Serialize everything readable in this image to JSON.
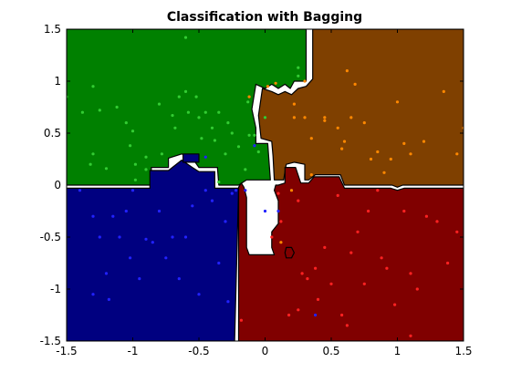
{
  "chart_data": {
    "type": "scatter",
    "title": "Classification with Bagging",
    "xlabel": "",
    "ylabel": "",
    "xlim": [
      -1.5,
      1.5
    ],
    "ylim": [
      -1.5,
      1.5
    ],
    "xticks": [
      "-1.5",
      "-1",
      "-0.5",
      "0",
      "0.5",
      "1",
      "1.5"
    ],
    "yticks": [
      "1.5",
      "1",
      "0.5",
      "0",
      "-0.5",
      "-1",
      "-1.5"
    ],
    "xtick_values": [
      -1.5,
      -1,
      -0.5,
      0,
      0.5,
      1,
      1.5
    ],
    "ytick_values": [
      1.5,
      1,
      0.5,
      0,
      -0.5,
      -1,
      -1.5
    ],
    "grid": false,
    "decision_regions": [
      {
        "class": "green",
        "color": "#008000",
        "polygon": [
          [
            -1.5,
            1.5
          ],
          [
            0.31,
            1.5
          ],
          [
            0.31,
            1.0
          ],
          [
            0.22,
            1.0
          ],
          [
            0.19,
            0.93
          ],
          [
            0.15,
            0.97
          ],
          [
            0.1,
            0.93
          ],
          [
            0.05,
            0.97
          ],
          [
            0.0,
            0.93
          ],
          [
            -0.07,
            0.97
          ],
          [
            -0.1,
            0.73
          ],
          [
            -0.07,
            0.55
          ],
          [
            -0.07,
            0.4
          ],
          [
            0.02,
            0.4
          ],
          [
            0.04,
            0.05
          ],
          [
            -0.14,
            0.05
          ],
          [
            -0.2,
            0.0
          ],
          [
            -0.35,
            0.0
          ],
          [
            -0.36,
            0.17
          ],
          [
            -0.5,
            0.17
          ],
          [
            -0.55,
            0.26
          ],
          [
            -0.63,
            0.3
          ],
          [
            -0.73,
            0.26
          ],
          [
            -0.73,
            0.17
          ],
          [
            -0.86,
            0.17
          ],
          [
            -0.86,
            0.0
          ],
          [
            -1.5,
            0.0
          ]
        ]
      },
      {
        "class": "brown",
        "color": "#7f4000",
        "polygon": [
          [
            0.36,
            1.5
          ],
          [
            1.5,
            1.5
          ],
          [
            1.5,
            0.0
          ],
          [
            1.04,
            0.0
          ],
          [
            1.0,
            -0.02
          ],
          [
            0.96,
            0.0
          ],
          [
            0.6,
            0.0
          ],
          [
            0.57,
            0.1
          ],
          [
            0.38,
            0.1
          ],
          [
            0.33,
            0.05
          ],
          [
            0.3,
            0.05
          ],
          [
            0.3,
            0.2
          ],
          [
            0.22,
            0.22
          ],
          [
            0.16,
            0.2
          ],
          [
            0.14,
            0.05
          ],
          [
            0.07,
            0.05
          ],
          [
            0.06,
            0.28
          ],
          [
            0.05,
            0.42
          ],
          [
            -0.03,
            0.45
          ],
          [
            -0.05,
            0.67
          ],
          [
            -0.02,
            0.93
          ],
          [
            0.05,
            0.9
          ],
          [
            0.1,
            0.87
          ],
          [
            0.15,
            0.9
          ],
          [
            0.2,
            0.87
          ],
          [
            0.25,
            0.93
          ],
          [
            0.31,
            0.95
          ],
          [
            0.36,
            1.02
          ]
        ]
      },
      {
        "class": "red",
        "color": "#800000",
        "polygon": [
          [
            0.1,
            0.0
          ],
          [
            0.15,
            0.02
          ],
          [
            0.15,
            0.17
          ],
          [
            0.23,
            0.17
          ],
          [
            0.27,
            0.02
          ],
          [
            0.33,
            0.02
          ],
          [
            0.37,
            0.08
          ],
          [
            0.56,
            0.08
          ],
          [
            0.6,
            -0.03
          ],
          [
            0.95,
            -0.03
          ],
          [
            1.0,
            -0.05
          ],
          [
            1.05,
            -0.03
          ],
          [
            1.5,
            -0.03
          ],
          [
            1.5,
            -1.5
          ],
          [
            -0.2,
            -1.5
          ],
          [
            -0.2,
            -0.02
          ],
          [
            -0.18,
            0.02
          ],
          [
            -0.16,
            -0.02
          ],
          [
            -0.14,
            -0.12
          ],
          [
            -0.14,
            -0.6
          ],
          [
            -0.12,
            -0.67
          ],
          [
            0.07,
            -0.67
          ],
          [
            0.05,
            -0.6
          ],
          [
            0.05,
            -0.45
          ],
          [
            0.1,
            -0.37
          ],
          [
            0.1,
            -0.15
          ],
          [
            0.07,
            -0.05
          ],
          [
            0.08,
            0.0
          ]
        ]
      },
      {
        "class": "red-island",
        "color": "#800000",
        "polygon": [
          [
            0.16,
            -0.6
          ],
          [
            0.2,
            -0.6
          ],
          [
            0.22,
            -0.65
          ],
          [
            0.2,
            -0.7
          ],
          [
            0.16,
            -0.7
          ],
          [
            0.15,
            -0.65
          ]
        ]
      },
      {
        "class": "blue",
        "color": "#000080",
        "polygon": [
          [
            -1.5,
            -0.03
          ],
          [
            -0.87,
            -0.03
          ],
          [
            -0.87,
            0.14
          ],
          [
            -0.73,
            0.14
          ],
          [
            -0.63,
            0.24
          ],
          [
            -0.55,
            0.17
          ],
          [
            -0.5,
            0.13
          ],
          [
            -0.38,
            0.13
          ],
          [
            -0.38,
            -0.03
          ],
          [
            -0.2,
            -0.03
          ],
          [
            -0.23,
            -1.5
          ],
          [
            -1.5,
            -1.5
          ]
        ]
      },
      {
        "class": "blue-inner",
        "color": "#000080",
        "polygon": [
          [
            -0.62,
            0.3
          ],
          [
            -0.5,
            0.3
          ],
          [
            -0.5,
            0.22
          ],
          [
            -0.62,
            0.22
          ]
        ]
      }
    ],
    "series": [
      {
        "name": "",
        "color": "#33cc33",
        "points": [
          [
            -1.5,
            0.85
          ],
          [
            -1.38,
            0.7
          ],
          [
            -1.3,
            0.95
          ],
          [
            -1.3,
            0.3
          ],
          [
            -1.25,
            0.72
          ],
          [
            -1.2,
            0.16
          ],
          [
            -1.12,
            0.75
          ],
          [
            -1.05,
            0.6
          ],
          [
            -1.0,
            0.52
          ],
          [
            -0.98,
            0.2
          ],
          [
            -0.9,
            0.27
          ],
          [
            -0.9,
            0.15
          ],
          [
            -0.8,
            0.78
          ],
          [
            -0.78,
            0.3
          ],
          [
            -0.7,
            0.67
          ],
          [
            -0.68,
            0.55
          ],
          [
            -0.65,
            0.85
          ],
          [
            -0.6,
            0.9
          ],
          [
            -0.58,
            0.7
          ],
          [
            -0.52,
            0.85
          ],
          [
            -0.5,
            0.65
          ],
          [
            -0.48,
            0.45
          ],
          [
            -0.45,
            0.7
          ],
          [
            -0.4,
            0.55
          ],
          [
            -0.38,
            0.43
          ],
          [
            -0.35,
            0.7
          ],
          [
            -0.3,
            0.3
          ],
          [
            -0.28,
            0.6
          ],
          [
            -0.25,
            0.5
          ],
          [
            -0.2,
            0.37
          ],
          [
            -0.15,
            0.15
          ],
          [
            -0.13,
            0.8
          ],
          [
            -0.12,
            0.48
          ],
          [
            -0.08,
            0.48
          ],
          [
            -0.05,
            0.32
          ],
          [
            0.0,
            0.65
          ],
          [
            -0.6,
            1.42
          ],
          [
            -1.02,
            0.38
          ],
          [
            -0.98,
            0.05
          ],
          [
            -1.32,
            0.2
          ],
          [
            0.25,
            1.13
          ],
          [
            0.25,
            1.05
          ],
          [
            -0.35,
            0.03
          ]
        ]
      },
      {
        "name": "",
        "color": "#ff8800",
        "points": [
          [
            0.02,
            0.95
          ],
          [
            0.08,
            0.98
          ],
          [
            0.22,
            0.78
          ],
          [
            0.3,
            0.65
          ],
          [
            0.35,
            0.45
          ],
          [
            0.45,
            0.65
          ],
          [
            0.55,
            0.55
          ],
          [
            0.6,
            0.42
          ],
          [
            0.68,
            0.97
          ],
          [
            0.75,
            0.6
          ],
          [
            0.8,
            0.25
          ],
          [
            0.85,
            0.32
          ],
          [
            0.9,
            0.12
          ],
          [
            0.95,
            0.25
          ],
          [
            1.0,
            0.8
          ],
          [
            1.05,
            0.4
          ],
          [
            1.1,
            0.3
          ],
          [
            1.2,
            0.42
          ],
          [
            1.35,
            0.9
          ],
          [
            1.45,
            0.3
          ],
          [
            1.5,
            0.55
          ],
          [
            0.45,
            0.62
          ],
          [
            0.65,
            0.65
          ],
          [
            0.58,
            0.35
          ],
          [
            -0.12,
            0.85
          ],
          [
            0.3,
            1.0
          ],
          [
            0.22,
            0.65
          ],
          [
            0.62,
            1.1
          ],
          [
            0.12,
            -0.55
          ],
          [
            0.2,
            -0.05
          ],
          [
            0.35,
            0.1
          ]
        ]
      },
      {
        "name": "",
        "color": "#ff2222",
        "points": [
          [
            0.05,
            -0.5
          ],
          [
            0.12,
            -0.35
          ],
          [
            0.25,
            -0.15
          ],
          [
            0.28,
            -0.85
          ],
          [
            0.32,
            -0.9
          ],
          [
            0.38,
            -0.8
          ],
          [
            0.4,
            -1.1
          ],
          [
            0.45,
            -0.6
          ],
          [
            0.5,
            -0.95
          ],
          [
            0.58,
            -1.25
          ],
          [
            0.62,
            -1.35
          ],
          [
            0.65,
            -0.65
          ],
          [
            0.7,
            -0.45
          ],
          [
            0.75,
            -0.95
          ],
          [
            0.78,
            -0.25
          ],
          [
            0.85,
            -0.05
          ],
          [
            0.88,
            -0.7
          ],
          [
            0.92,
            -0.8
          ],
          [
            0.98,
            -1.15
          ],
          [
            1.05,
            -0.25
          ],
          [
            1.1,
            -0.85
          ],
          [
            1.15,
            -1.0
          ],
          [
            1.22,
            -0.3
          ],
          [
            1.3,
            -0.35
          ],
          [
            1.38,
            -0.75
          ],
          [
            1.45,
            -0.45
          ],
          [
            0.55,
            -0.1
          ],
          [
            0.18,
            -1.25
          ],
          [
            -0.18,
            -1.3
          ],
          [
            0.25,
            -1.2
          ],
          [
            1.1,
            -1.45
          ],
          [
            0.1,
            -0.08
          ]
        ]
      },
      {
        "name": "",
        "color": "#2222ff",
        "points": [
          [
            -1.4,
            -0.05
          ],
          [
            -1.3,
            -0.3
          ],
          [
            -1.25,
            -0.5
          ],
          [
            -1.2,
            -0.85
          ],
          [
            -1.18,
            -1.1
          ],
          [
            -1.15,
            -0.3
          ],
          [
            -1.1,
            -0.5
          ],
          [
            -1.05,
            -0.25
          ],
          [
            -1.0,
            -0.05
          ],
          [
            -0.95,
            -0.9
          ],
          [
            -0.9,
            -0.52
          ],
          [
            -0.85,
            -0.55
          ],
          [
            -0.8,
            -0.25
          ],
          [
            -0.75,
            -0.7
          ],
          [
            -0.7,
            -0.5
          ],
          [
            -0.65,
            -0.9
          ],
          [
            -0.6,
            -0.5
          ],
          [
            -0.55,
            -0.2
          ],
          [
            -0.5,
            -1.05
          ],
          [
            -0.45,
            -0.05
          ],
          [
            -0.4,
            -0.15
          ],
          [
            -0.35,
            -0.75
          ],
          [
            -0.3,
            -0.35
          ],
          [
            -0.28,
            -1.12
          ],
          [
            -0.25,
            -0.08
          ],
          [
            -0.22,
            -0.05
          ],
          [
            -0.15,
            -0.05
          ],
          [
            -1.3,
            -1.05
          ],
          [
            -0.08,
            0.38
          ],
          [
            -0.45,
            0.27
          ],
          [
            0.38,
            -1.25
          ],
          [
            -1.02,
            -0.7
          ],
          [
            0.1,
            -0.25
          ],
          [
            0.0,
            -0.25
          ]
        ]
      }
    ]
  }
}
